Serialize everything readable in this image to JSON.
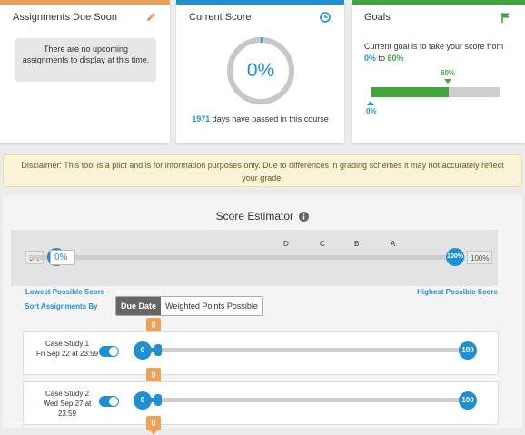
{
  "assignments_card": {
    "title": "Assignments Due Soon",
    "empty_message": "There are no upcoming assignments to display at this time.",
    "accent_color": "#e8a05b",
    "icon": "pencil-icon"
  },
  "score_card": {
    "title": "Current Score",
    "score": "0%",
    "score_fraction": 0.0,
    "days_count": "1971",
    "days_text": " days have passed in this course",
    "accent_color": "#1e8fd3",
    "icon": "clock-icon"
  },
  "goals_card": {
    "title": "Goals",
    "text_prefix": "Current goal is to take your score from",
    "from": "0%",
    "connector": " to ",
    "to": "60%",
    "goal_marker_label": "60%",
    "current_marker_label": "0%",
    "goal_fraction": 0.6,
    "accent_color": "#40a63c",
    "icon": "flag-icon"
  },
  "disclaimer": "Disclaimer: This tool is a pilot and is for information purposes only. Due to differences in grading schemes it may not accurately reflect your grade.",
  "estimator": {
    "title": "Score Estimator",
    "grades": [
      "D",
      "C",
      "B",
      "A"
    ],
    "min_label": "0%",
    "min_dot": "0%",
    "min_input": "0%",
    "max_dot": "100%",
    "max_label": "100%",
    "lowest_label": "Lowest Possible Score",
    "highest_label": "Highest Possible Score",
    "sort_label": "Sort Assignments By",
    "sort_options": [
      "Due Date",
      "Weighted Points Possible"
    ],
    "sort_selected": "Due Date"
  },
  "assignments": [
    {
      "name": "Case Study 1",
      "due": "Fri Sep 22 at 23:59",
      "enabled": true,
      "min": "0",
      "max": "100",
      "value": "0"
    },
    {
      "name": "Case Study 2",
      "due": "Wed Sep 27 at 23:59",
      "enabled": true,
      "min": "0",
      "max": "100",
      "value": "0"
    }
  ],
  "next_value_tag": "0"
}
